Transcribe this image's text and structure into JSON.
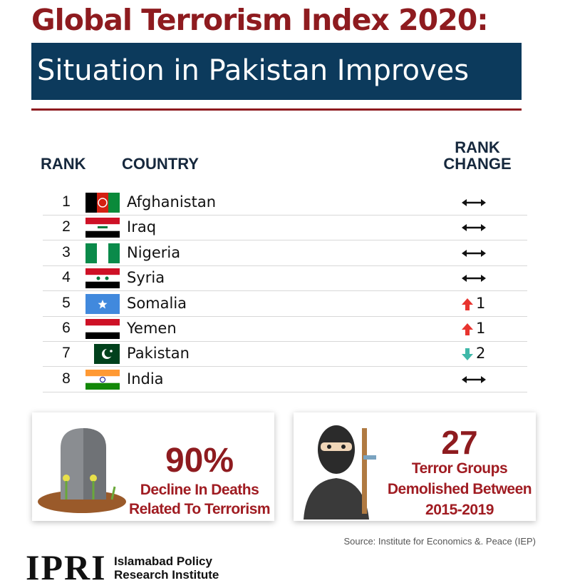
{
  "header": {
    "title": "Global Terrorism Index 2020:",
    "subtitle": "Situation in Pakistan Improves"
  },
  "table": {
    "headers": {
      "rank": "RANK",
      "country": "COUNTRY",
      "change": [
        "RANK",
        "CHANGE"
      ]
    },
    "rows": [
      {
        "rank": 1,
        "country": "Afghanistan",
        "change": {
          "direction": "same"
        }
      },
      {
        "rank": 2,
        "country": "Iraq",
        "change": {
          "direction": "same"
        }
      },
      {
        "rank": 3,
        "country": "Nigeria",
        "change": {
          "direction": "same"
        }
      },
      {
        "rank": 4,
        "country": "Syria",
        "change": {
          "direction": "same"
        }
      },
      {
        "rank": 5,
        "country": "Somalia",
        "change": {
          "direction": "up",
          "value": 1
        }
      },
      {
        "rank": 6,
        "country": "Yemen",
        "change": {
          "direction": "up",
          "value": 1
        }
      },
      {
        "rank": 7,
        "country": "Pakistan",
        "change": {
          "direction": "down",
          "value": 2
        }
      },
      {
        "rank": 8,
        "country": "India",
        "change": {
          "direction": "same"
        }
      }
    ]
  },
  "cards": [
    {
      "figure": "90%",
      "lines": [
        "Decline In Deaths",
        "Related To Terrorism"
      ]
    },
    {
      "figure": "27",
      "lines": [
        "Terror Groups",
        "Demolished Between",
        "2015-2019"
      ]
    }
  ],
  "source": "Source: Institute for Economics &. Peace (IEP)",
  "footer": {
    "logo": "IPRI",
    "name": [
      "Islamabad Policy",
      "Research Institute"
    ]
  }
}
